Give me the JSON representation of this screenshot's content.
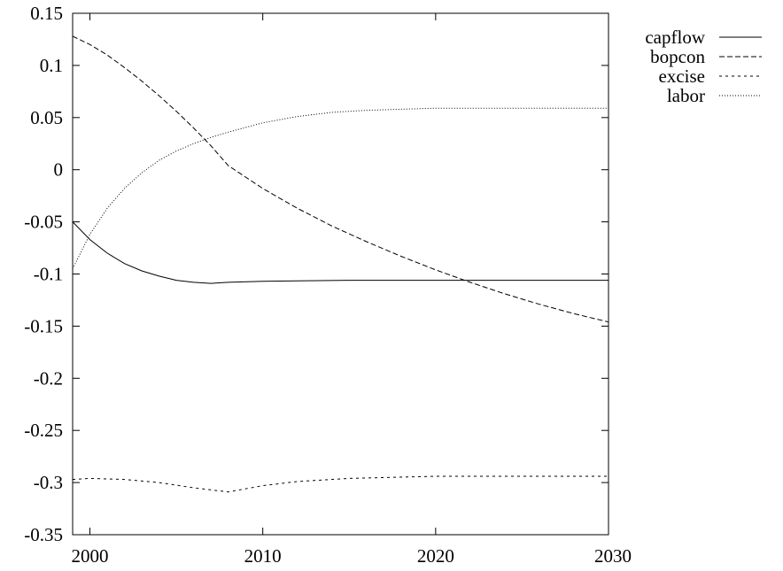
{
  "chart_data": {
    "type": "line",
    "title": "",
    "xlabel": "",
    "ylabel": "",
    "xlim": [
      1999,
      2030
    ],
    "ylim": [
      -0.35,
      0.15
    ],
    "xticks": [
      2000,
      2010,
      2020,
      2030
    ],
    "xtick_labels": [
      "2000",
      "2010",
      "2020",
      "2030"
    ],
    "yticks": [
      0.15,
      0.1,
      0.05,
      0,
      -0.05,
      -0.1,
      -0.15,
      -0.2,
      -0.25,
      -0.3,
      -0.35
    ],
    "ytick_labels": [
      "0.15",
      "0.1",
      "0.05",
      "0",
      "-0.05",
      "-0.1",
      "-0.15",
      "-0.2",
      "-0.25",
      "-0.3",
      "-0.35"
    ],
    "grid": false,
    "legend_position": "outside-top-right",
    "series": [
      {
        "name": "capflow",
        "style": "solid",
        "color": "#000000",
        "x": [
          1999,
          2000,
          2001,
          2002,
          2003,
          2004,
          2005,
          2006,
          2007,
          2008,
          2010,
          2012,
          2015,
          2018,
          2020,
          2025,
          2030
        ],
        "y": [
          -0.05,
          -0.067,
          -0.08,
          -0.09,
          -0.097,
          -0.102,
          -0.106,
          -0.108,
          -0.109,
          -0.108,
          -0.107,
          -0.1065,
          -0.106,
          -0.106,
          -0.106,
          -0.106,
          -0.106
        ]
      },
      {
        "name": "bopcon",
        "style": "dashed",
        "color": "#000000",
        "x": [
          1999,
          2000,
          2001,
          2002,
          2003,
          2004,
          2005,
          2006,
          2007,
          2008,
          2010,
          2012,
          2014,
          2016,
          2018,
          2020,
          2022,
          2024,
          2026,
          2028,
          2030
        ],
        "y": [
          0.128,
          0.12,
          0.11,
          0.098,
          0.085,
          0.071,
          0.056,
          0.04,
          0.023,
          0.004,
          -0.018,
          -0.037,
          -0.054,
          -0.069,
          -0.083,
          -0.096,
          -0.108,
          -0.119,
          -0.129,
          -0.138,
          -0.146
        ]
      },
      {
        "name": "excise",
        "style": "dotted-dashed",
        "color": "#000000",
        "x": [
          1999,
          2000,
          2002,
          2004,
          2006,
          2008,
          2010,
          2012,
          2015,
          2020,
          2025,
          2030
        ],
        "y": [
          -0.297,
          -0.296,
          -0.297,
          -0.3,
          -0.305,
          -0.309,
          -0.303,
          -0.299,
          -0.296,
          -0.294,
          -0.294,
          -0.294
        ]
      },
      {
        "name": "labor",
        "style": "dotted",
        "color": "#000000",
        "x": [
          1999,
          2000,
          2001,
          2002,
          2003,
          2004,
          2005,
          2006,
          2007,
          2008,
          2010,
          2012,
          2014,
          2016,
          2018,
          2020,
          2025,
          2030
        ],
        "y": [
          -0.095,
          -0.062,
          -0.037,
          -0.018,
          -0.003,
          0.009,
          0.018,
          0.025,
          0.031,
          0.036,
          0.045,
          0.051,
          0.055,
          0.057,
          0.058,
          0.059,
          0.059,
          0.059
        ]
      }
    ]
  }
}
